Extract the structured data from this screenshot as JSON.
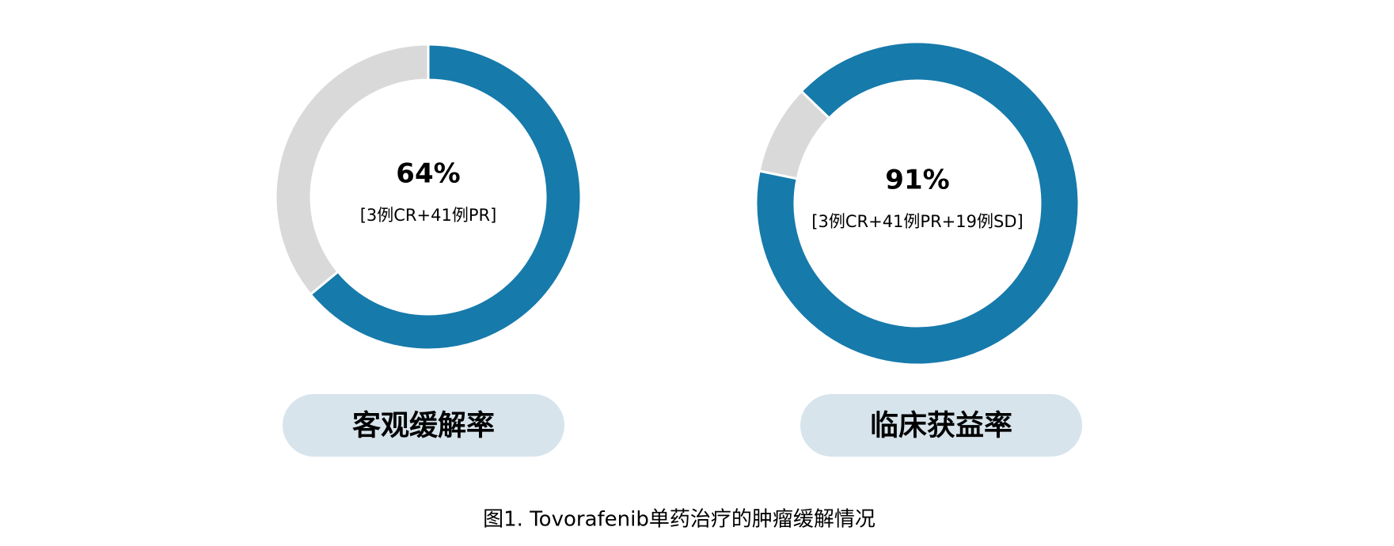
{
  "chart_data": [
    {
      "type": "pie",
      "title": "客观缓解率",
      "values": [
        64,
        36
      ],
      "value_labels": [
        "64%",
        null
      ],
      "subtitle": "[3例CR+41例PR]",
      "colors": [
        "#167aab",
        "#d9d9d9"
      ],
      "donut": true
    },
    {
      "type": "pie",
      "title": "临床获益率",
      "values": [
        91,
        9
      ],
      "value_labels": [
        "91%",
        null
      ],
      "subtitle": "[3例CR+41例PR+19例SD]",
      "colors": [
        "#167aab",
        "#d9d9d9"
      ],
      "donut": true
    }
  ],
  "caption": "图1. Tovorafenib单药治疗的肿瘤缓解情况"
}
